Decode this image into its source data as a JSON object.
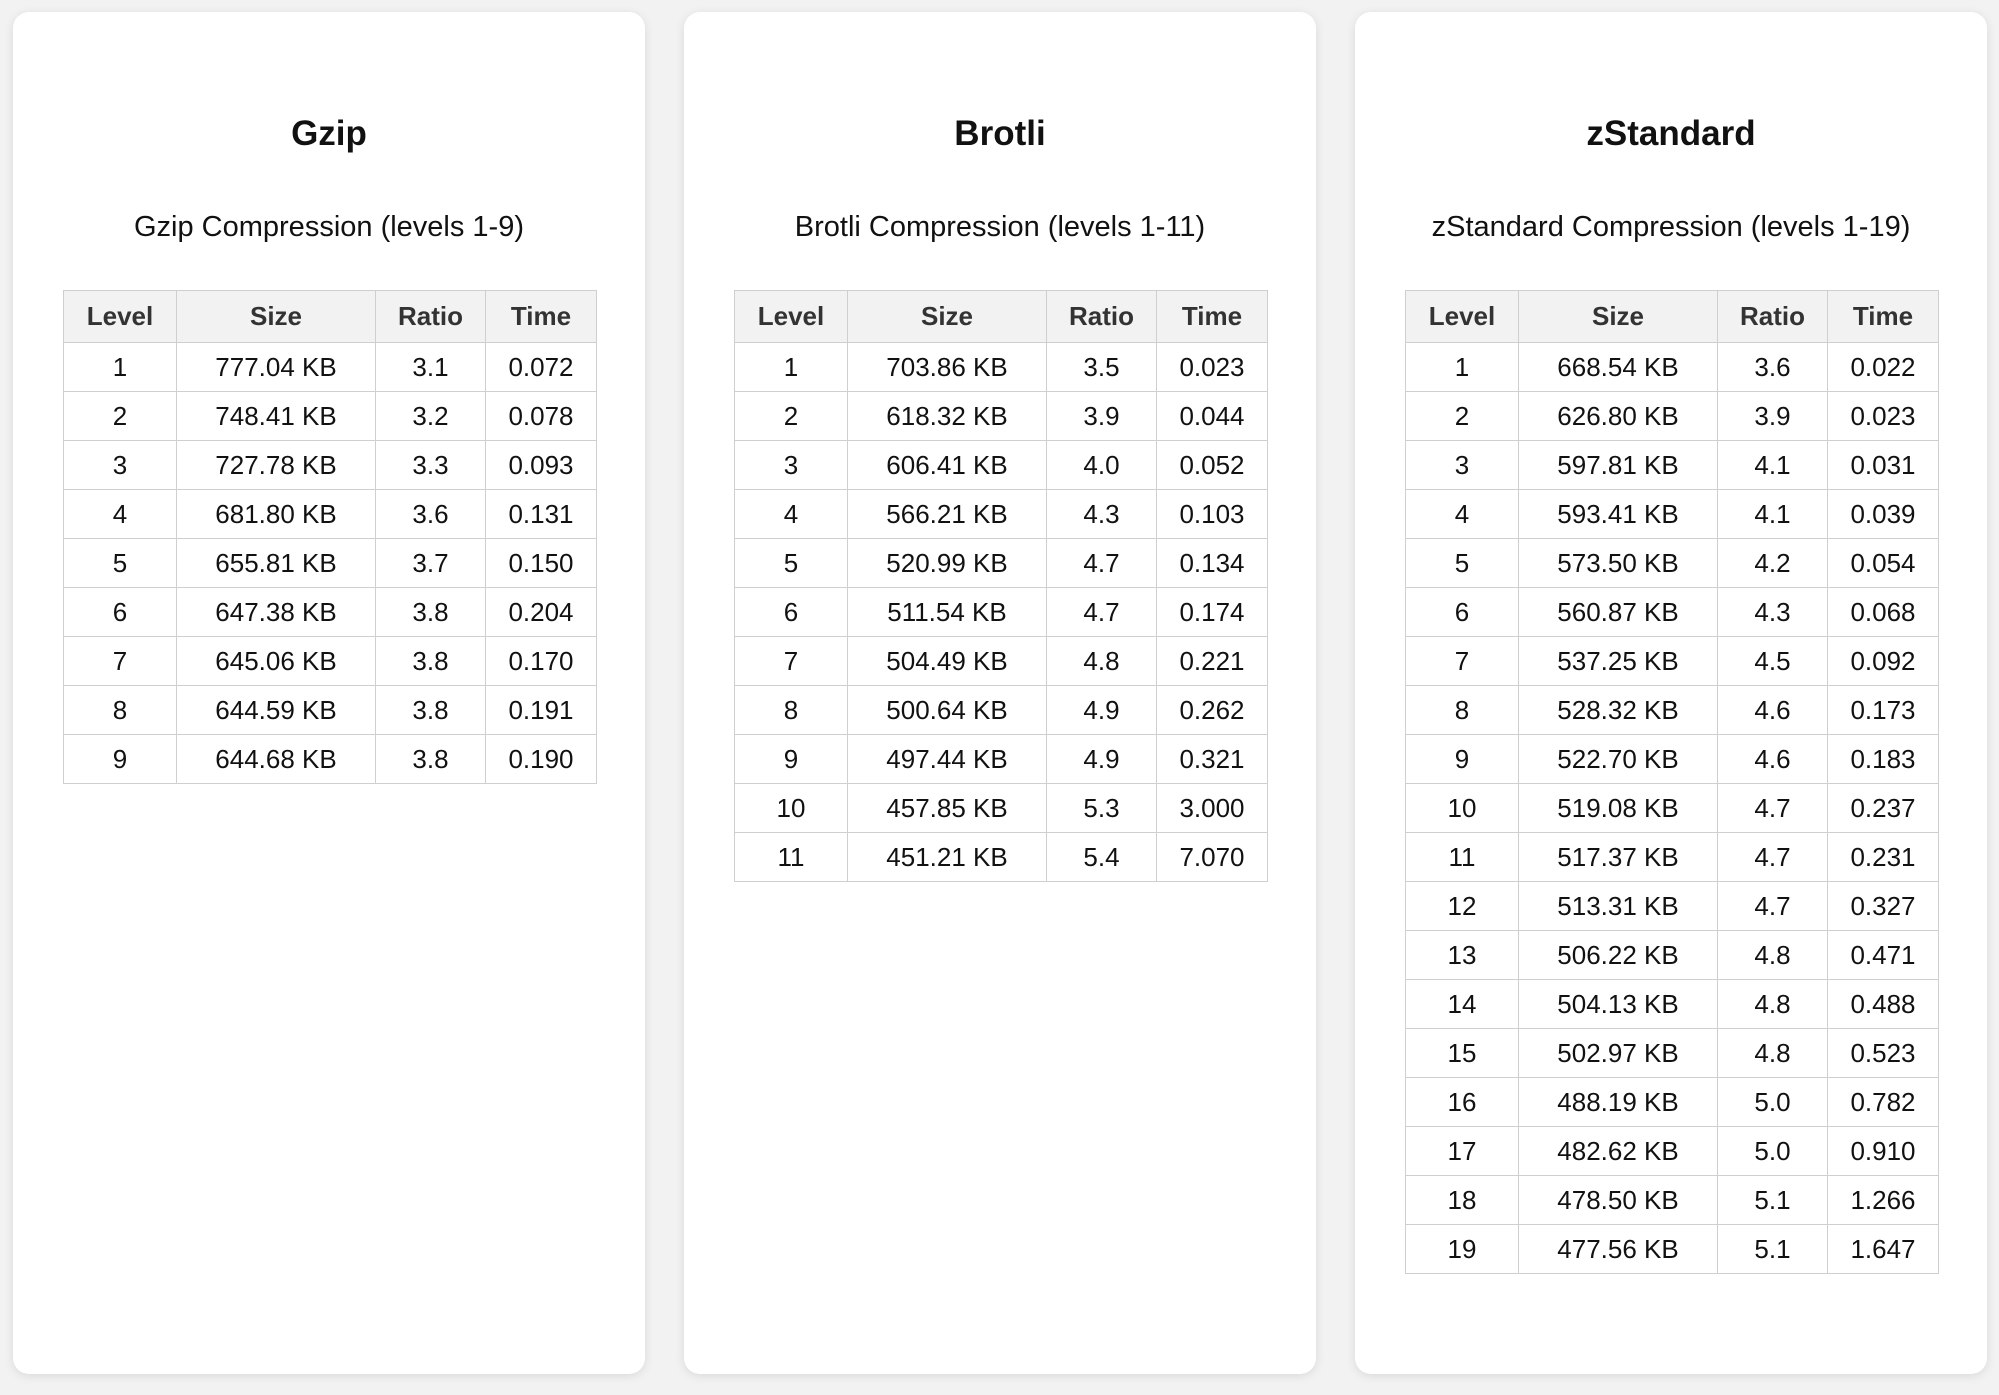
{
  "columns": [
    "Level",
    "Size",
    "Ratio",
    "Time"
  ],
  "cards": [
    {
      "title": "Gzip",
      "subtitle": "Gzip Compression (levels 1-9)",
      "rows": [
        [
          "1",
          "777.04 KB",
          "3.1",
          "0.072"
        ],
        [
          "2",
          "748.41 KB",
          "3.2",
          "0.078"
        ],
        [
          "3",
          "727.78 KB",
          "3.3",
          "0.093"
        ],
        [
          "4",
          "681.80 KB",
          "3.6",
          "0.131"
        ],
        [
          "5",
          "655.81 KB",
          "3.7",
          "0.150"
        ],
        [
          "6",
          "647.38 KB",
          "3.8",
          "0.204"
        ],
        [
          "7",
          "645.06 KB",
          "3.8",
          "0.170"
        ],
        [
          "8",
          "644.59 KB",
          "3.8",
          "0.191"
        ],
        [
          "9",
          "644.68 KB",
          "3.8",
          "0.190"
        ]
      ]
    },
    {
      "title": "Brotli",
      "subtitle": "Brotli Compression (levels 1-11)",
      "rows": [
        [
          "1",
          "703.86 KB",
          "3.5",
          "0.023"
        ],
        [
          "2",
          "618.32 KB",
          "3.9",
          "0.044"
        ],
        [
          "3",
          "606.41 KB",
          "4.0",
          "0.052"
        ],
        [
          "4",
          "566.21 KB",
          "4.3",
          "0.103"
        ],
        [
          "5",
          "520.99 KB",
          "4.7",
          "0.134"
        ],
        [
          "6",
          "511.54 KB",
          "4.7",
          "0.174"
        ],
        [
          "7",
          "504.49 KB",
          "4.8",
          "0.221"
        ],
        [
          "8",
          "500.64 KB",
          "4.9",
          "0.262"
        ],
        [
          "9",
          "497.44 KB",
          "4.9",
          "0.321"
        ],
        [
          "10",
          "457.85 KB",
          "5.3",
          "3.000"
        ],
        [
          "11",
          "451.21 KB",
          "5.4",
          "7.070"
        ]
      ]
    },
    {
      "title": "zStandard",
      "subtitle": "zStandard Compression (levels 1-19)",
      "rows": [
        [
          "1",
          "668.54 KB",
          "3.6",
          "0.022"
        ],
        [
          "2",
          "626.80 KB",
          "3.9",
          "0.023"
        ],
        [
          "3",
          "597.81 KB",
          "4.1",
          "0.031"
        ],
        [
          "4",
          "593.41 KB",
          "4.1",
          "0.039"
        ],
        [
          "5",
          "573.50 KB",
          "4.2",
          "0.054"
        ],
        [
          "6",
          "560.87 KB",
          "4.3",
          "0.068"
        ],
        [
          "7",
          "537.25 KB",
          "4.5",
          "0.092"
        ],
        [
          "8",
          "528.32 KB",
          "4.6",
          "0.173"
        ],
        [
          "9",
          "522.70 KB",
          "4.6",
          "0.183"
        ],
        [
          "10",
          "519.08 KB",
          "4.7",
          "0.237"
        ],
        [
          "11",
          "517.37 KB",
          "4.7",
          "0.231"
        ],
        [
          "12",
          "513.31 KB",
          "4.7",
          "0.327"
        ],
        [
          "13",
          "506.22 KB",
          "4.8",
          "0.471"
        ],
        [
          "14",
          "504.13 KB",
          "4.8",
          "0.488"
        ],
        [
          "15",
          "502.97 KB",
          "4.8",
          "0.523"
        ],
        [
          "16",
          "488.19 KB",
          "5.0",
          "0.782"
        ],
        [
          "17",
          "482.62 KB",
          "5.0",
          "0.910"
        ],
        [
          "18",
          "478.50 KB",
          "5.1",
          "1.266"
        ],
        [
          "19",
          "477.56 KB",
          "5.1",
          "1.647"
        ]
      ]
    }
  ]
}
